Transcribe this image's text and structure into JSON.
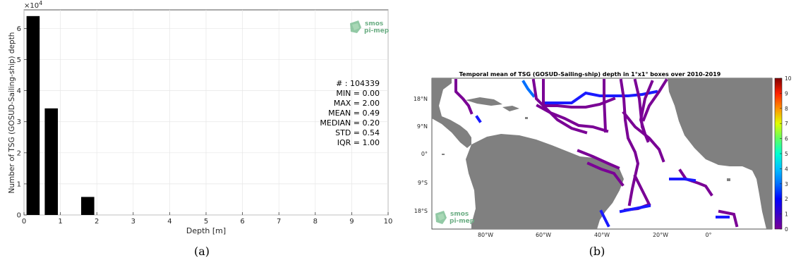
{
  "chart_data": [
    {
      "type": "bar",
      "xlabel": "Depth [m]",
      "ylabel": "Number of TSG (GOSUD-Sailing-ship) depth",
      "y_multiplier": "×10",
      "y_multiplier_exp": "4",
      "xlim": [
        0,
        10
      ],
      "ylim": [
        0,
        6.6
      ],
      "x_ticks": [
        "0",
        "1",
        "2",
        "3",
        "4",
        "5",
        "6",
        "7",
        "8",
        "9",
        "10"
      ],
      "y_ticks": [
        "0",
        "1",
        "2",
        "3",
        "4",
        "5",
        "6"
      ],
      "bars": [
        {
          "x": 0.25,
          "value": 6.4
        },
        {
          "x": 0.75,
          "value": 3.43
        },
        {
          "x": 1.75,
          "value": 0.58
        }
      ],
      "grid": true,
      "stats": [
        "# : 104339",
        "MIN = 0.00",
        "MAX =  2.00",
        "MEAN = 0.49",
        "MEDIAN = 0.20",
        "STD = 0.54",
        "IQR = 1.00"
      ],
      "logo": {
        "line1": "smos",
        "line2": "pi-mep"
      },
      "caption": "(a)"
    },
    {
      "type": "heatmap",
      "title": "Temporal mean of TSG (GOSUD-Sailing-ship) depth in 1°x1° boxes over 2010-2019",
      "lat_labels": [
        "18°N",
        "9°N",
        "0°",
        "9°S",
        "18°S"
      ],
      "lon_labels": [
        "80°W",
        "60°W",
        "40°W",
        "20°W",
        "0°"
      ],
      "colorbar": {
        "min": 0,
        "max": 10,
        "ticks": [
          "0",
          "1",
          "2",
          "3",
          "4",
          "5",
          "6",
          "7",
          "8",
          "9",
          "10"
        ],
        "colormap": "jet"
      },
      "logo": {
        "line1": "smos",
        "line2": "pi-mep"
      },
      "caption": "(b)"
    }
  ],
  "colors": {
    "bar": "#000000",
    "land": "#808080",
    "track_low": "#7a0095",
    "track_mid": "#1a1aff",
    "track_high": "#0070ff",
    "logo": "#6cae84"
  }
}
